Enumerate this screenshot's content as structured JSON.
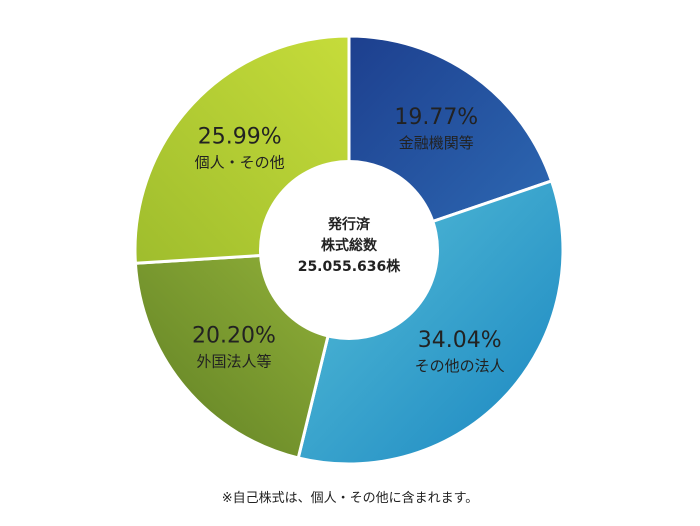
{
  "chart_data": {
    "type": "pie",
    "categories": [
      "金融機関等",
      "その他の法人",
      "外国法人等",
      "個人・その他"
    ],
    "values": [
      19.77,
      34.04,
      20.2,
      25.99
    ],
    "value_labels": [
      "19.77%",
      "34.04%",
      "20.20%",
      "25.99%"
    ],
    "center_label": [
      "発行済",
      "株式総数",
      "25.055.636株"
    ],
    "colors": {
      "金融機関等": [
        "#1d3f8e",
        "#2e6bb5"
      ],
      "その他の法人": [
        "#58c0d8",
        "#1a86c1"
      ],
      "外国法人等": [
        "#5f7f24",
        "#94b33a"
      ],
      "個人・その他": [
        "#9fbd2d",
        "#c6dc3a"
      ]
    }
  },
  "footnote": "※自己株式は、個人・その他に含まれます。"
}
